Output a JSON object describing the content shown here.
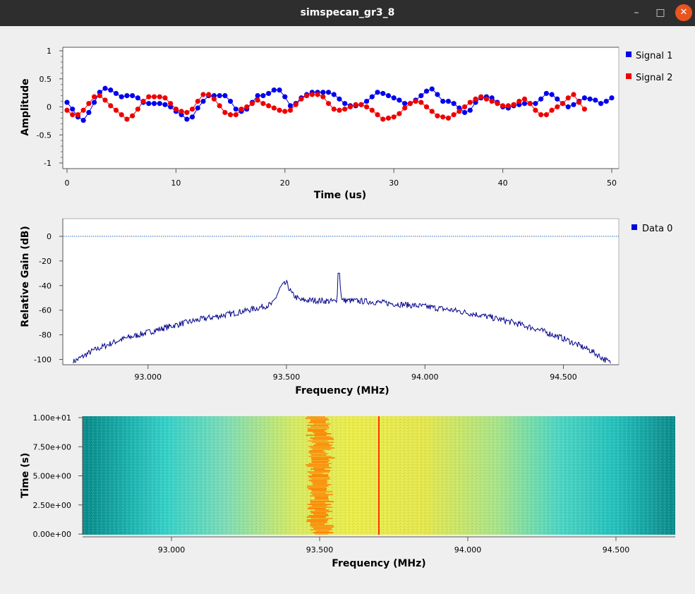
{
  "window": {
    "title": "simspecan_gr3_8",
    "buttons": {
      "minimize": "–",
      "maximize": "□",
      "close": "✕"
    },
    "close_color": "#e95420"
  },
  "time_plot": {
    "type": "scatter-line",
    "xlabel": "Time (us)",
    "ylabel": "Amplitude",
    "xlim": [
      0,
      50
    ],
    "ylim": [
      -1,
      1
    ],
    "xticks": [
      "0",
      "10",
      "20",
      "30",
      "40",
      "50"
    ],
    "yticks": [
      "1",
      "0.5",
      "0",
      "-0.5",
      "-1"
    ],
    "legend": [
      {
        "name": "Signal 1",
        "color": "#0000ee"
      },
      {
        "name": "Signal 2",
        "color": "#ee0000"
      }
    ],
    "x_step": 0.5,
    "series": [
      {
        "name": "Signal 1",
        "color": "#0000ee",
        "values": [
          0.08,
          -0.04,
          -0.18,
          -0.24,
          -0.1,
          0.08,
          0.26,
          0.33,
          0.3,
          0.24,
          0.18,
          0.2,
          0.2,
          0.16,
          0.08,
          0.06,
          0.06,
          0.06,
          0.04,
          0.0,
          -0.08,
          -0.14,
          -0.22,
          -0.18,
          -0.02,
          0.1,
          0.2,
          0.2,
          0.2,
          0.2,
          0.1,
          -0.04,
          -0.08,
          -0.04,
          0.08,
          0.2,
          0.2,
          0.24,
          0.3,
          0.3,
          0.18,
          0.02,
          0.06,
          0.16,
          0.22,
          0.26,
          0.26,
          0.26,
          0.26,
          0.22,
          0.14,
          0.06,
          0.02,
          0.02,
          0.04,
          0.1,
          0.18,
          0.26,
          0.24,
          0.2,
          0.16,
          0.12,
          0.06,
          0.06,
          0.12,
          0.2,
          0.28,
          0.32,
          0.22,
          0.1,
          0.1,
          0.06,
          -0.02,
          -0.1,
          -0.06,
          0.08,
          0.16,
          0.18,
          0.16,
          0.08,
          0.0,
          -0.02,
          0.02,
          0.04,
          0.06,
          0.06,
          0.06,
          0.14,
          0.24,
          0.22,
          0.14,
          0.06,
          0.0,
          0.04,
          0.1,
          0.16,
          0.14,
          0.12,
          0.06,
          0.1,
          0.16
        ]
      },
      {
        "name": "Signal 2",
        "color": "#ee0000",
        "values": [
          -0.06,
          -0.14,
          -0.14,
          -0.06,
          0.06,
          0.18,
          0.2,
          0.12,
          0.02,
          -0.06,
          -0.14,
          -0.22,
          -0.16,
          -0.04,
          0.1,
          0.18,
          0.18,
          0.18,
          0.16,
          0.06,
          -0.04,
          -0.08,
          -0.1,
          -0.04,
          0.1,
          0.22,
          0.22,
          0.14,
          0.02,
          -0.1,
          -0.14,
          -0.14,
          -0.04,
          0.0,
          0.06,
          0.12,
          0.06,
          0.02,
          -0.02,
          -0.06,
          -0.08,
          -0.06,
          0.04,
          0.14,
          0.2,
          0.22,
          0.22,
          0.18,
          0.06,
          -0.04,
          -0.06,
          -0.04,
          0.0,
          0.04,
          0.04,
          0.0,
          -0.06,
          -0.14,
          -0.22,
          -0.2,
          -0.18,
          -0.12,
          -0.02,
          0.06,
          0.1,
          0.08,
          0.0,
          -0.08,
          -0.16,
          -0.18,
          -0.2,
          -0.14,
          -0.08,
          0.0,
          0.08,
          0.14,
          0.18,
          0.14,
          0.1,
          0.06,
          0.02,
          0.02,
          0.04,
          0.1,
          0.14,
          0.06,
          -0.06,
          -0.14,
          -0.14,
          -0.06,
          0.0,
          0.06,
          0.16,
          0.22,
          0.08,
          -0.04
        ]
      }
    ]
  },
  "freq_plot": {
    "type": "line",
    "xlabel": "Frequency (MHz)",
    "ylabel": "Relative Gain (dB)",
    "xlim": [
      92.7,
      94.7
    ],
    "ylim": [
      -102,
      12
    ],
    "xticks": [
      "93.000",
      "93.500",
      "94.000",
      "94.500"
    ],
    "yticks": [
      "0",
      "-20",
      "-40",
      "-60",
      "-80",
      "-100"
    ],
    "legend": [
      {
        "name": "Data 0",
        "color": "#0000dd"
      }
    ],
    "reference_level_db": 0,
    "trace_color": "#00008b",
    "trace_points_mhz_db": [
      [
        92.73,
        -102
      ],
      [
        92.8,
        -93
      ],
      [
        92.9,
        -84
      ],
      [
        93.0,
        -78
      ],
      [
        93.1,
        -72
      ],
      [
        93.2,
        -67
      ],
      [
        93.3,
        -63
      ],
      [
        93.4,
        -58
      ],
      [
        93.45,
        -55
      ],
      [
        93.48,
        -41
      ],
      [
        93.5,
        -38
      ],
      [
        93.52,
        -47
      ],
      [
        93.55,
        -52
      ],
      [
        93.6,
        -52
      ],
      [
        93.68,
        -53
      ],
      [
        93.69,
        -30
      ],
      [
        93.7,
        -52
      ],
      [
        93.8,
        -53
      ],
      [
        93.9,
        -55
      ],
      [
        94.0,
        -57
      ],
      [
        94.1,
        -60
      ],
      [
        94.2,
        -64
      ],
      [
        94.3,
        -69
      ],
      [
        94.4,
        -75
      ],
      [
        94.5,
        -83
      ],
      [
        94.6,
        -93
      ],
      [
        94.67,
        -103
      ]
    ]
  },
  "waterfall_plot": {
    "type": "heatmap",
    "xlabel": "Frequency (MHz)",
    "ylabel": "Time (s)",
    "xlim": [
      92.7,
      94.7
    ],
    "xticks": [
      "93.000",
      "93.500",
      "94.000",
      "94.500"
    ],
    "yticks": [
      "1.00e+01",
      "7.50e+00",
      "5.00e+00",
      "2.50e+00",
      "0.00e+00"
    ],
    "ylim": [
      0,
      10
    ],
    "carrier_mhz": 93.7,
    "hot_band_mhz": [
      93.45,
      93.55
    ],
    "colors": {
      "edge": "#0a8a8a",
      "mid": "#35d0c8",
      "center": "#ecec4a",
      "hot": "#ff7f00",
      "carrier": "#ff3300"
    }
  }
}
